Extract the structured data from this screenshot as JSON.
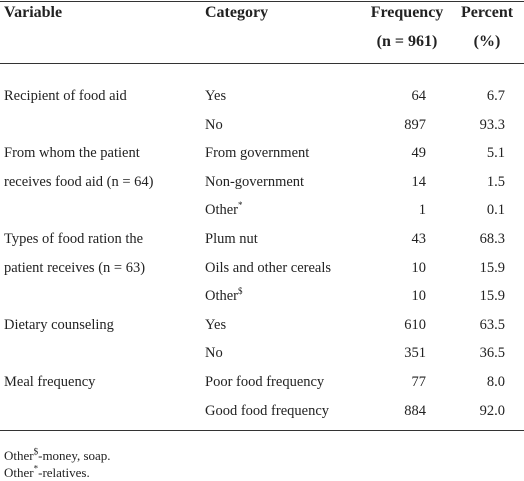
{
  "table": {
    "header": [
      "Variable",
      "Category",
      "Frequency",
      "(n = 961)",
      "Percent",
      "(%)"
    ],
    "rows": [
      {
        "variable": "Recipient of food aid",
        "category": "Yes",
        "frequency": "64",
        "percent": "6.7"
      },
      {
        "category": "No",
        "frequency": "897",
        "percent": "93.3"
      },
      {
        "variable": "From whom the patient",
        "category": "From government",
        "frequency": "49",
        "percent": "5.1"
      },
      {
        "variable": "receives food aid (n = 64)",
        "category": "Non-government",
        "frequency": "14",
        "percent": "1.5"
      },
      {
        "category": "Other",
        "category_sup": "*",
        "frequency": "1",
        "percent": "0.1"
      },
      {
        "variable": "Types of food ration the",
        "category": "Plum nut",
        "frequency": "43",
        "percent": "68.3"
      },
      {
        "variable": "patient receives (n = 63)",
        "category": "Oils and other cereals",
        "frequency": "10",
        "percent": "15.9"
      },
      {
        "category": "Other",
        "category_sup": "$",
        "frequency": "10",
        "percent": "15.9"
      },
      {
        "variable": "Dietary counseling",
        "category": "Yes",
        "frequency": "610",
        "percent": "63.5"
      },
      {
        "category": "No",
        "frequency": "351",
        "percent": "36.5"
      },
      {
        "variable": "Meal frequency",
        "category": "Poor food frequency",
        "frequency": "77",
        "percent": "8.0"
      },
      {
        "category": "Good food frequency",
        "frequency": "884",
        "percent": "92.0"
      }
    ],
    "footnotes": [
      {
        "text": "Other",
        "sup": "$",
        "rest": "-money, soap."
      },
      {
        "text": "Other",
        "sup": "*",
        "rest": "-relatives."
      }
    ]
  }
}
